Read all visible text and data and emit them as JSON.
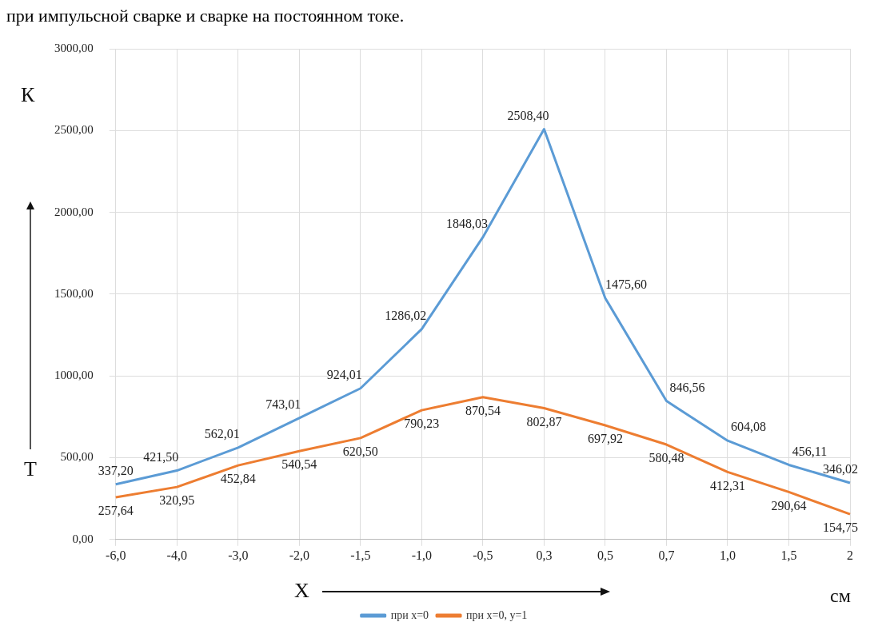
{
  "chart_data": {
    "type": "line",
    "annotations": [
      "при импульсной сварке и сварке на постоянном токе.",
      "К",
      "см"
    ],
    "xlabel": "X",
    "ylabel": "Т",
    "categories": [
      "-6,0",
      "-4,0",
      "-3,0",
      "-2,0",
      "-1,5",
      "-1,0",
      "-0,5",
      "0,3",
      "0,5",
      "0,7",
      "1,0",
      "1,5",
      "2"
    ],
    "series": [
      {
        "name": "при x=0",
        "color": "#5b9bd5",
        "values": [
          337.2,
          421.5,
          562.01,
          743.01,
          924.01,
          1286.02,
          1848.03,
          2508.4,
          1475.6,
          846.56,
          604.08,
          456.11,
          346.02
        ],
        "value_labels": [
          "337,20",
          "421,50",
          "562,01",
          "743,01",
          "924,01",
          "1286,02",
          "1848,03",
          "2508,40",
          "1475,60",
          "846,56",
          "604,08",
          "456,11",
          "346,02"
        ]
      },
      {
        "name": "при x=0, y=1",
        "color": "#ed7d31",
        "values": [
          257.64,
          320.95,
          452.84,
          540.54,
          620.5,
          790.23,
          870.54,
          802.87,
          697.92,
          580.48,
          412.31,
          290.64,
          154.75
        ],
        "value_labels": [
          "257,64",
          "320,95",
          "452,84",
          "540,54",
          "620,50",
          "790,23",
          "870,54",
          "802,87",
          "697,92",
          "580,48",
          "412,31",
          "290,64",
          "154,75"
        ]
      }
    ],
    "ylim": [
      0,
      3000
    ],
    "yticks": [
      {
        "value": 0,
        "label": "0,00"
      },
      {
        "value": 500,
        "label": "500,00"
      },
      {
        "value": 1000,
        "label": "1000,00"
      },
      {
        "value": 1500,
        "label": "1500,00"
      },
      {
        "value": 2000,
        "label": "2000,00"
      },
      {
        "value": 2500,
        "label": "2500,00"
      },
      {
        "value": 3000,
        "label": "3000,00"
      }
    ],
    "grid": true,
    "legend": "bottom",
    "marker": "none",
    "line_style": "solid"
  }
}
